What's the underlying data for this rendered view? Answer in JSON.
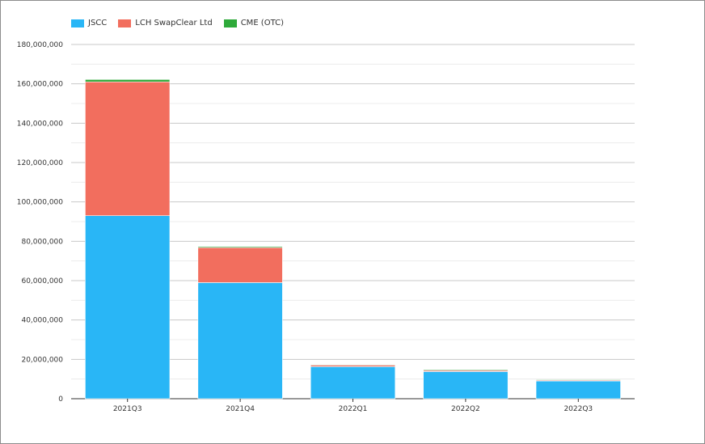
{
  "chart_data": {
    "type": "bar",
    "stacked": true,
    "categories": [
      "2021Q3",
      "2021Q4",
      "2022Q1",
      "2022Q2",
      "2022Q3"
    ],
    "series": [
      {
        "name": "JSCC",
        "color": "#29b6f6",
        "values": [
          93000000,
          59000000,
          16300000,
          13800000,
          9000000
        ]
      },
      {
        "name": "LCH SwapClear Ltd",
        "color": "#f26e5e",
        "values": [
          68000000,
          17800000,
          800000,
          600000,
          400000
        ]
      },
      {
        "name": "CME (OTC)",
        "color": "#2eaa3a",
        "values": [
          1200000,
          500000,
          300000,
          400000,
          300000
        ]
      }
    ],
    "ylim": [
      0,
      180000000
    ],
    "yticks": [
      "0",
      "20,000,000",
      "40,000,000",
      "60,000,000",
      "80,000,000",
      "100,000,000",
      "120,000,000",
      "140,000,000",
      "160,000,000",
      "180,000,000"
    ],
    "legend": "top-left",
    "grid": true
  }
}
